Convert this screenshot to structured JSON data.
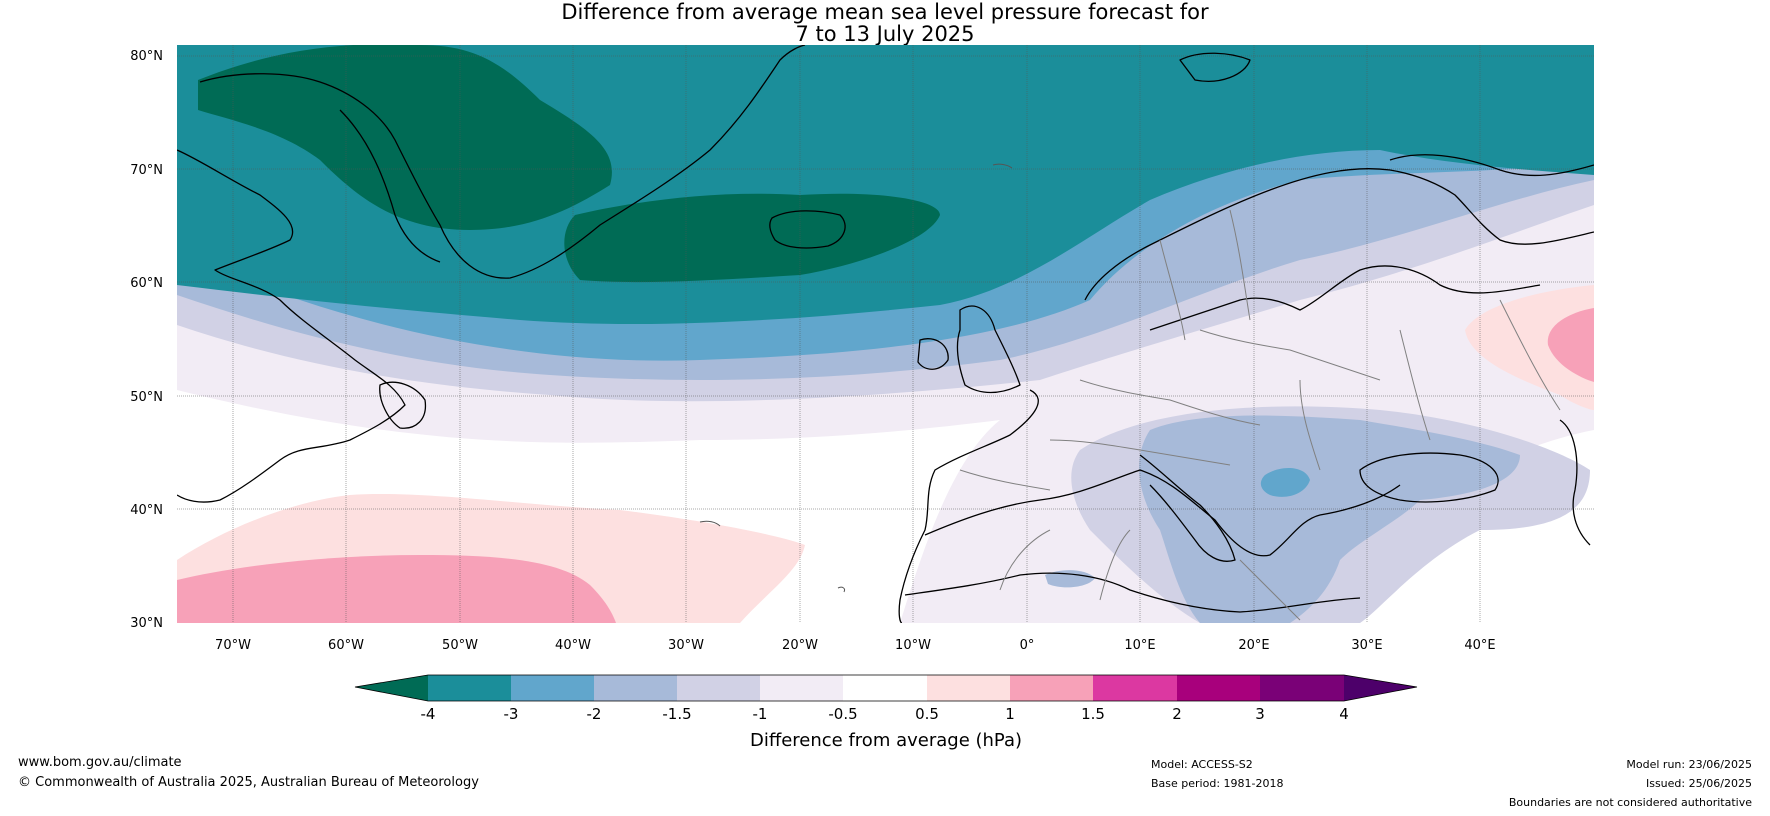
{
  "title": {
    "line1": "Difference from average mean sea level pressure forecast for",
    "line2": "7 to 13 July 2025"
  },
  "map": {
    "lat_labels": [
      "80°N",
      "70°N",
      "60°N",
      "50°N",
      "40°N",
      "30°N"
    ],
    "lon_labels": [
      "70°W",
      "60°W",
      "50°W",
      "40°W",
      "30°W",
      "20°W",
      "10°W",
      "0°",
      "10°E",
      "20°E",
      "30°E",
      "40°E"
    ],
    "lat_range": [
      30,
      81
    ],
    "lon_range": [
      -75,
      50
    ]
  },
  "colorbar": {
    "title": "Difference from average (hPa)",
    "ticks": [
      "-4",
      "-3",
      "-2",
      "-1.5",
      "-1",
      "-0.5",
      "0.5",
      "1",
      "1.5",
      "2",
      "3",
      "4"
    ],
    "colors": [
      "#006b55",
      "#1b8e9a",
      "#61a6cc",
      "#a7bad9",
      "#d1d1e5",
      "#f2ecf5",
      "#ffffff",
      "#fde0e0",
      "#f7a1b8",
      "#dc38a1",
      "#a8007c",
      "#7a0177",
      "#4d006a"
    ]
  },
  "footer": {
    "website": "www.bom.gov.au/climate",
    "copyright": "© Commonwealth of Australia 2025, Australian Bureau of Meteorology",
    "model": "Model: ACCESS-S2",
    "base_period": "Base period: 1981-2018",
    "model_run": "Model run: 23/06/2025",
    "issued": "Issued: 25/06/2025",
    "disclaimer": "Boundaries are not considered authoritative"
  }
}
